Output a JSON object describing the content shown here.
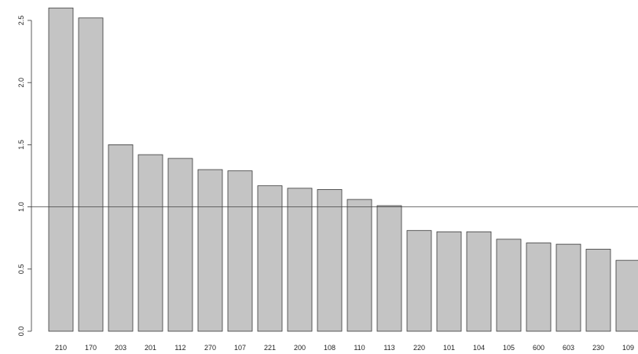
{
  "chart_data": {
    "type": "bar",
    "title": "",
    "xlabel": "",
    "ylabel": "",
    "categories": [
      "210",
      "170",
      "203",
      "201",
      "112",
      "270",
      "107",
      "221",
      "200",
      "108",
      "110",
      "113",
      "220",
      "101",
      "104",
      "105",
      "600",
      "603",
      "230",
      "109"
    ],
    "values": [
      2.6,
      2.52,
      1.5,
      1.42,
      1.39,
      1.3,
      1.29,
      1.17,
      1.15,
      1.14,
      1.06,
      1.01,
      0.81,
      0.8,
      0.8,
      0.74,
      0.71,
      0.7,
      0.66,
      0.57
    ],
    "ylim": [
      0,
      2.6
    ],
    "yticks": [
      "0.0",
      "0.5",
      "1.0",
      "1.5",
      "2.0",
      "2.5"
    ],
    "reference_line": 1.0,
    "bar_fill": "#c4c4c4",
    "bar_stroke": "#3a3a3a",
    "grid": false,
    "legend": "none"
  }
}
